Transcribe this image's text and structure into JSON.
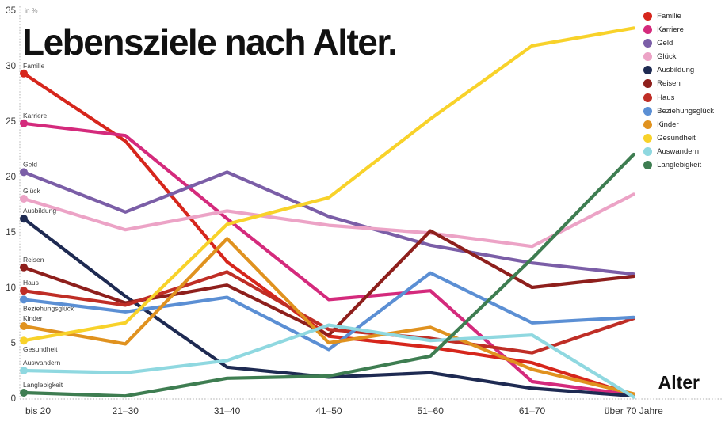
{
  "title": "Lebensziele nach Alter.",
  "colors": {
    "background": "#ffffff",
    "axis_dotted": "#c8c8c8",
    "tick_text": "#3a3a3a",
    "series_label_text": "#3a3a3a",
    "title_text": "#111111"
  },
  "chart_data": {
    "type": "line",
    "title": "Lebensziele nach Alter.",
    "unit_label": "in %",
    "xlabel": "Alter",
    "ylabel": "",
    "ylim": [
      0,
      35
    ],
    "yticks": [
      0,
      5,
      10,
      15,
      20,
      25,
      30,
      35
    ],
    "grid": false,
    "legend_position": "top-right",
    "categories": [
      "bis 20",
      "21–30",
      "31–40",
      "41–50",
      "51–60",
      "61–70",
      "über 70 Jahre"
    ],
    "series": [
      {
        "name": "Familie",
        "color": "#d6261c",
        "label_position": "above",
        "values": [
          29.3,
          23.2,
          12.3,
          5.6,
          4.6,
          3.2,
          0.3
        ]
      },
      {
        "name": "Karriere",
        "color": "#d42a7c",
        "label_position": "above",
        "values": [
          24.8,
          23.7,
          16.2,
          8.9,
          9.7,
          1.5,
          0.3
        ]
      },
      {
        "name": "Geld",
        "color": "#7b5ea7",
        "label_position": "above",
        "values": [
          20.4,
          16.8,
          20.4,
          16.4,
          13.8,
          12.2,
          11.2
        ]
      },
      {
        "name": "Glück",
        "color": "#eca3c6",
        "label_position": "above",
        "values": [
          18.0,
          15.2,
          16.9,
          15.6,
          14.9,
          13.7,
          18.4
        ]
      },
      {
        "name": "Ausbildung",
        "color": "#1e2a52",
        "label_position": "above",
        "values": [
          16.2,
          9.2,
          2.8,
          1.9,
          2.3,
          0.9,
          0.2
        ]
      },
      {
        "name": "Reisen",
        "color": "#8e1f1c",
        "label_position": "above",
        "values": [
          11.8,
          8.6,
          10.2,
          5.7,
          15.1,
          10.0,
          11.0
        ]
      },
      {
        "name": "Haus",
        "color": "#bf2e26",
        "label_position": "above",
        "values": [
          9.7,
          8.4,
          11.4,
          6.2,
          5.4,
          4.1,
          7.2
        ]
      },
      {
        "name": "Beziehungsglück",
        "color": "#5b8fd4",
        "label_position": "below",
        "values": [
          8.9,
          7.8,
          9.1,
          4.4,
          11.3,
          6.8,
          7.3
        ]
      },
      {
        "name": "Kinder",
        "color": "#e0921f",
        "label_position": "above",
        "values": [
          6.5,
          4.9,
          14.4,
          5.0,
          6.4,
          2.6,
          0.4
        ]
      },
      {
        "name": "Gesundheit",
        "color": "#f8d22a",
        "label_position": "below",
        "values": [
          5.2,
          6.8,
          15.7,
          18.1,
          25.2,
          31.8,
          33.4
        ]
      },
      {
        "name": "Auswandern",
        "color": "#8fd8e0",
        "label_position": "above",
        "values": [
          2.5,
          2.3,
          3.4,
          6.6,
          5.2,
          5.7,
          0.1
        ]
      },
      {
        "name": "Langlebigkeit",
        "color": "#3e7d51",
        "label_position": "above",
        "values": [
          0.5,
          0.2,
          1.8,
          2.0,
          3.8,
          12.6,
          22.0
        ]
      }
    ]
  }
}
